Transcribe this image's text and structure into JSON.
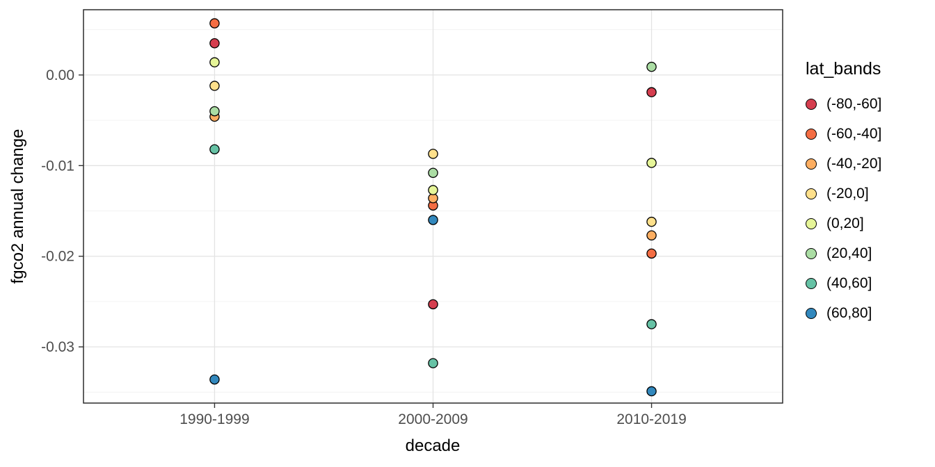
{
  "chart_data": {
    "type": "scatter",
    "title": "",
    "xlabel": "decade",
    "ylabel": "fgco2 annual change",
    "legend_title": "lat_bands",
    "legend_position": "right",
    "grid": true,
    "categories": [
      "1990-1999",
      "2000-2009",
      "2010-2019"
    ],
    "ylim": [
      -0.0362,
      0.0072
    ],
    "y_ticks": [
      {
        "value": 0.0,
        "label": "0.00"
      },
      {
        "value": -0.01,
        "label": "-0.01"
      },
      {
        "value": -0.02,
        "label": "-0.02"
      },
      {
        "value": -0.03,
        "label": "-0.03"
      }
    ],
    "y_minor": [
      0.005,
      -0.005,
      -0.015,
      -0.025,
      -0.035
    ],
    "series": [
      {
        "name": "(-80,-60]",
        "color": "#D53E4F",
        "values": [
          0.0035,
          -0.0253,
          -0.0019
        ]
      },
      {
        "name": "(-60,-40]",
        "color": "#F46D43",
        "values": [
          0.0057,
          -0.0144,
          -0.0197
        ]
      },
      {
        "name": "(-40,-20]",
        "color": "#FDAE61",
        "values": [
          -0.0046,
          -0.0136,
          -0.0177
        ]
      },
      {
        "name": "(-20,0]",
        "color": "#FEE08B",
        "values": [
          -0.0012,
          -0.0087,
          -0.0162
        ]
      },
      {
        "name": "(0,20]",
        "color": "#E6F598",
        "values": [
          0.0014,
          -0.0127,
          -0.0097
        ]
      },
      {
        "name": "(20,40]",
        "color": "#ABDDA4",
        "values": [
          -0.004,
          -0.0108,
          0.0009
        ]
      },
      {
        "name": "(40,60]",
        "color": "#66C2A5",
        "values": [
          -0.0082,
          -0.0318,
          -0.0275
        ]
      },
      {
        "name": "(60,80]",
        "color": "#3288BD",
        "values": [
          -0.0336,
          -0.016,
          -0.0349
        ]
      }
    ]
  }
}
